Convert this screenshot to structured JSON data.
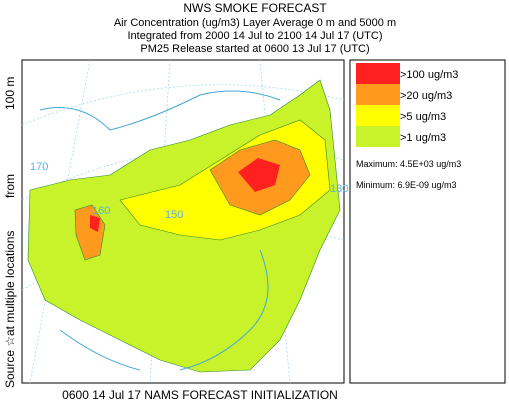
{
  "header": {
    "title": "NWS SMOKE FORECAST",
    "lines": [
      "Air Concentration (ug/m3) Layer Average    0 m and  5000 m",
      "Integrated from 2000 14 Jul to 2100 14 Jul 17 (UTC)",
      "PM25 Release started at 0600 13 Jul 17 (UTC)"
    ]
  },
  "side_label": {
    "source": "Source ☆",
    "locations": "at multiple locations",
    "from": "from",
    "height": "100 m"
  },
  "legend": {
    "items": [
      {
        "label": ">100 ug/m3",
        "color": "#ff2020"
      },
      {
        "label": ">20 ug/m3",
        "color": "#ff9a1e"
      },
      {
        "label": ">5 ug/m3",
        "color": "#ffff00"
      },
      {
        "label": ">1 ug/m3",
        "color": "#c8f22a"
      }
    ],
    "maximum": "Maximum: 4.5E+03 ug/m3",
    "minimum": "Minimum: 6.9E-09 ug/m3"
  },
  "map": {
    "grid_labels": [
      "170",
      "160",
      "150",
      "130"
    ]
  },
  "footer": "0600 14 Jul 17 NAMS FORECAST INITIALIZATION"
}
